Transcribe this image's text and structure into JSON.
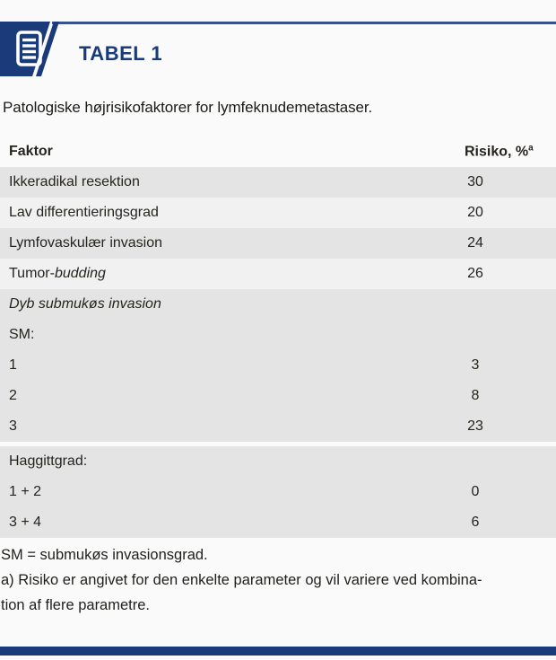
{
  "header": {
    "badge_label": "TABEL 1",
    "icon": "table-list-icon"
  },
  "title": "Patologiske højrisikofaktorer for lymfeknudemetastaser.",
  "colors": {
    "navy": "#1b3a7a",
    "rule_blue": "#35528f",
    "row_gray": "#e4e4e4",
    "row_light": "#f1f1f2",
    "page_bg": "#fafafa",
    "text": "#26241f"
  },
  "table": {
    "columns": {
      "col1": "Faktor",
      "col2_text": "Risiko, %",
      "col2_sup": "a"
    },
    "rows": [
      {
        "label_segments": [
          {
            "text": "Ikkeradikal resektion",
            "italic": false
          }
        ],
        "value": "30",
        "bg": "gray",
        "gap_before": false
      },
      {
        "label_segments": [
          {
            "text": "Lav differentieringsgrad",
            "italic": false
          }
        ],
        "value": "20",
        "bg": "light",
        "gap_before": false
      },
      {
        "label_segments": [
          {
            "text": "Lymfovaskulær invasion",
            "italic": false
          }
        ],
        "value": "24",
        "bg": "gray",
        "gap_before": false
      },
      {
        "label_segments": [
          {
            "text": "Tumor-",
            "italic": false
          },
          {
            "text": "budding",
            "italic": true
          }
        ],
        "value": "26",
        "bg": "light",
        "gap_before": false
      },
      {
        "label_segments": [
          {
            "text": "Dyb submukøs invasion",
            "italic": true
          }
        ],
        "value": "",
        "bg": "gray",
        "gap_before": false
      },
      {
        "label_segments": [
          {
            "text": "SM:",
            "italic": false
          }
        ],
        "value": "",
        "bg": "gray",
        "gap_before": false
      },
      {
        "label_segments": [
          {
            "text": "1",
            "italic": false
          }
        ],
        "value": "3",
        "bg": "gray",
        "gap_before": false
      },
      {
        "label_segments": [
          {
            "text": "2",
            "italic": false
          }
        ],
        "value": "8",
        "bg": "gray",
        "gap_before": false
      },
      {
        "label_segments": [
          {
            "text": "3",
            "italic": false
          }
        ],
        "value": "23",
        "bg": "gray",
        "gap_before": false
      },
      {
        "label_segments": [
          {
            "text": "Haggittgrad:",
            "italic": false
          }
        ],
        "value": "",
        "bg": "gray",
        "gap_before": true
      },
      {
        "label_segments": [
          {
            "text": "1 + 2",
            "italic": false
          }
        ],
        "value": "0",
        "bg": "gray",
        "gap_before": false
      },
      {
        "label_segments": [
          {
            "text": "3 + 4",
            "italic": false
          }
        ],
        "value": "6",
        "bg": "gray",
        "gap_before": false
      }
    ]
  },
  "footnotes": [
    "SM = submukøs invasionsgrad.",
    "a) Risiko er angivet for den enkelte parameter og vil variere ved kombina-",
    "tion af flere parametre."
  ]
}
